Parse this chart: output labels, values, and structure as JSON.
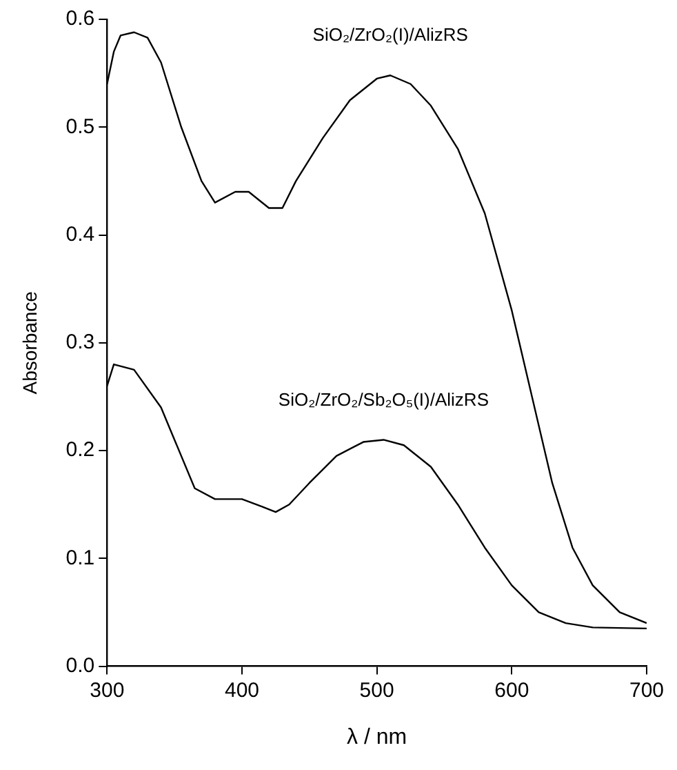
{
  "chart_data": {
    "type": "line",
    "xlabel": "λ / nm",
    "ylabel": "Absorbance",
    "xlim": [
      300,
      700
    ],
    "xticks": [
      300,
      400,
      500,
      600,
      700
    ],
    "ylim": [
      0,
      0.6
    ],
    "yticks": [
      {
        "value": 0,
        "label": "0.0"
      },
      {
        "value": 0.1,
        "label": "0.1"
      },
      {
        "value": 0.2,
        "label": "0.2"
      },
      {
        "value": 0.3,
        "label": "0.3"
      },
      {
        "value": 0.4,
        "label": "0.4"
      },
      {
        "value": 0.5,
        "label": "0.5"
      },
      {
        "value": 0.6,
        "label": "0.6"
      }
    ],
    "grid": false,
    "legend": false,
    "marker": "none",
    "line_style": "solid",
    "series": [
      {
        "name": "SiO₂/ZrO₂(I)/AlizRS",
        "color": "#000000",
        "x": [
          300,
          305,
          310,
          320,
          330,
          340,
          355,
          370,
          380,
          395,
          405,
          420,
          430,
          440,
          460,
          480,
          500,
          510,
          525,
          540,
          560,
          580,
          600,
          615,
          630,
          645,
          660,
          680,
          700
        ],
        "values": [
          0.54,
          0.57,
          0.585,
          0.588,
          0.583,
          0.56,
          0.5,
          0.45,
          0.43,
          0.44,
          0.44,
          0.425,
          0.425,
          0.45,
          0.49,
          0.525,
          0.545,
          0.548,
          0.54,
          0.52,
          0.48,
          0.42,
          0.33,
          0.25,
          0.17,
          0.11,
          0.075,
          0.05,
          0.04
        ]
      },
      {
        "name": "SiO₂/ZrO₂/Sb₂O₅(I)/AlizRS",
        "color": "#000000",
        "x": [
          300,
          305,
          320,
          340,
          350,
          365,
          380,
          400,
          415,
          425,
          435,
          450,
          470,
          490,
          505,
          520,
          540,
          560,
          580,
          600,
          620,
          640,
          660,
          700
        ],
        "values": [
          0.26,
          0.28,
          0.275,
          0.24,
          0.21,
          0.165,
          0.155,
          0.155,
          0.148,
          0.143,
          0.15,
          0.17,
          0.195,
          0.208,
          0.21,
          0.205,
          0.185,
          0.15,
          0.11,
          0.075,
          0.05,
          0.04,
          0.036,
          0.035
        ]
      }
    ]
  }
}
